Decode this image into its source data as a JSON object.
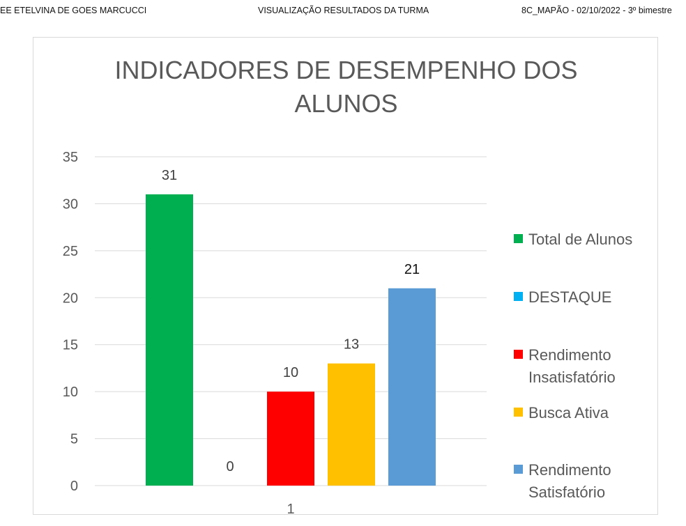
{
  "header": {
    "left": "EE ETELVINA DE GOES MARCUCCI",
    "center": "VISUALIZAÇÃO  RESULTADOS DA TURMA",
    "right": "8C_MAPÃO - 02/10/2022 - 3º bimestre"
  },
  "chart_data": {
    "type": "bar",
    "title_lines": [
      "INDICADORES DE DESEMPENHO DOS",
      "ALUNOS"
    ],
    "categories": [
      "1"
    ],
    "ylim": [
      0,
      35
    ],
    "yticks": [
      0,
      5,
      10,
      15,
      20,
      25,
      30,
      35
    ],
    "grid": true,
    "legend_position": "right",
    "series": [
      {
        "name": "Total de Alunos",
        "legend_lines": [
          "Total de Alunos"
        ],
        "values": [
          31
        ],
        "label": "31",
        "color": "#00B050"
      },
      {
        "name": "DESTAQUE",
        "legend_lines": [
          "DESTAQUE"
        ],
        "values": [
          0
        ],
        "label": "0",
        "color": "#00B0F0"
      },
      {
        "name": "Rendimento Insatisfatório",
        "legend_lines": [
          "Rendimento",
          "Insatisfatório"
        ],
        "values": [
          10
        ],
        "label": "10",
        "color": "#FF0000"
      },
      {
        "name": "Busca Ativa",
        "legend_lines": [
          "Busca Ativa"
        ],
        "values": [
          13
        ],
        "label": "13",
        "color": "#FFC000"
      },
      {
        "name": "Rendimento Satisfatório",
        "legend_lines": [
          "Rendimento",
          "Satisfatório"
        ],
        "values": [
          21
        ],
        "label": "21",
        "color": "#5B9BD5"
      }
    ]
  }
}
